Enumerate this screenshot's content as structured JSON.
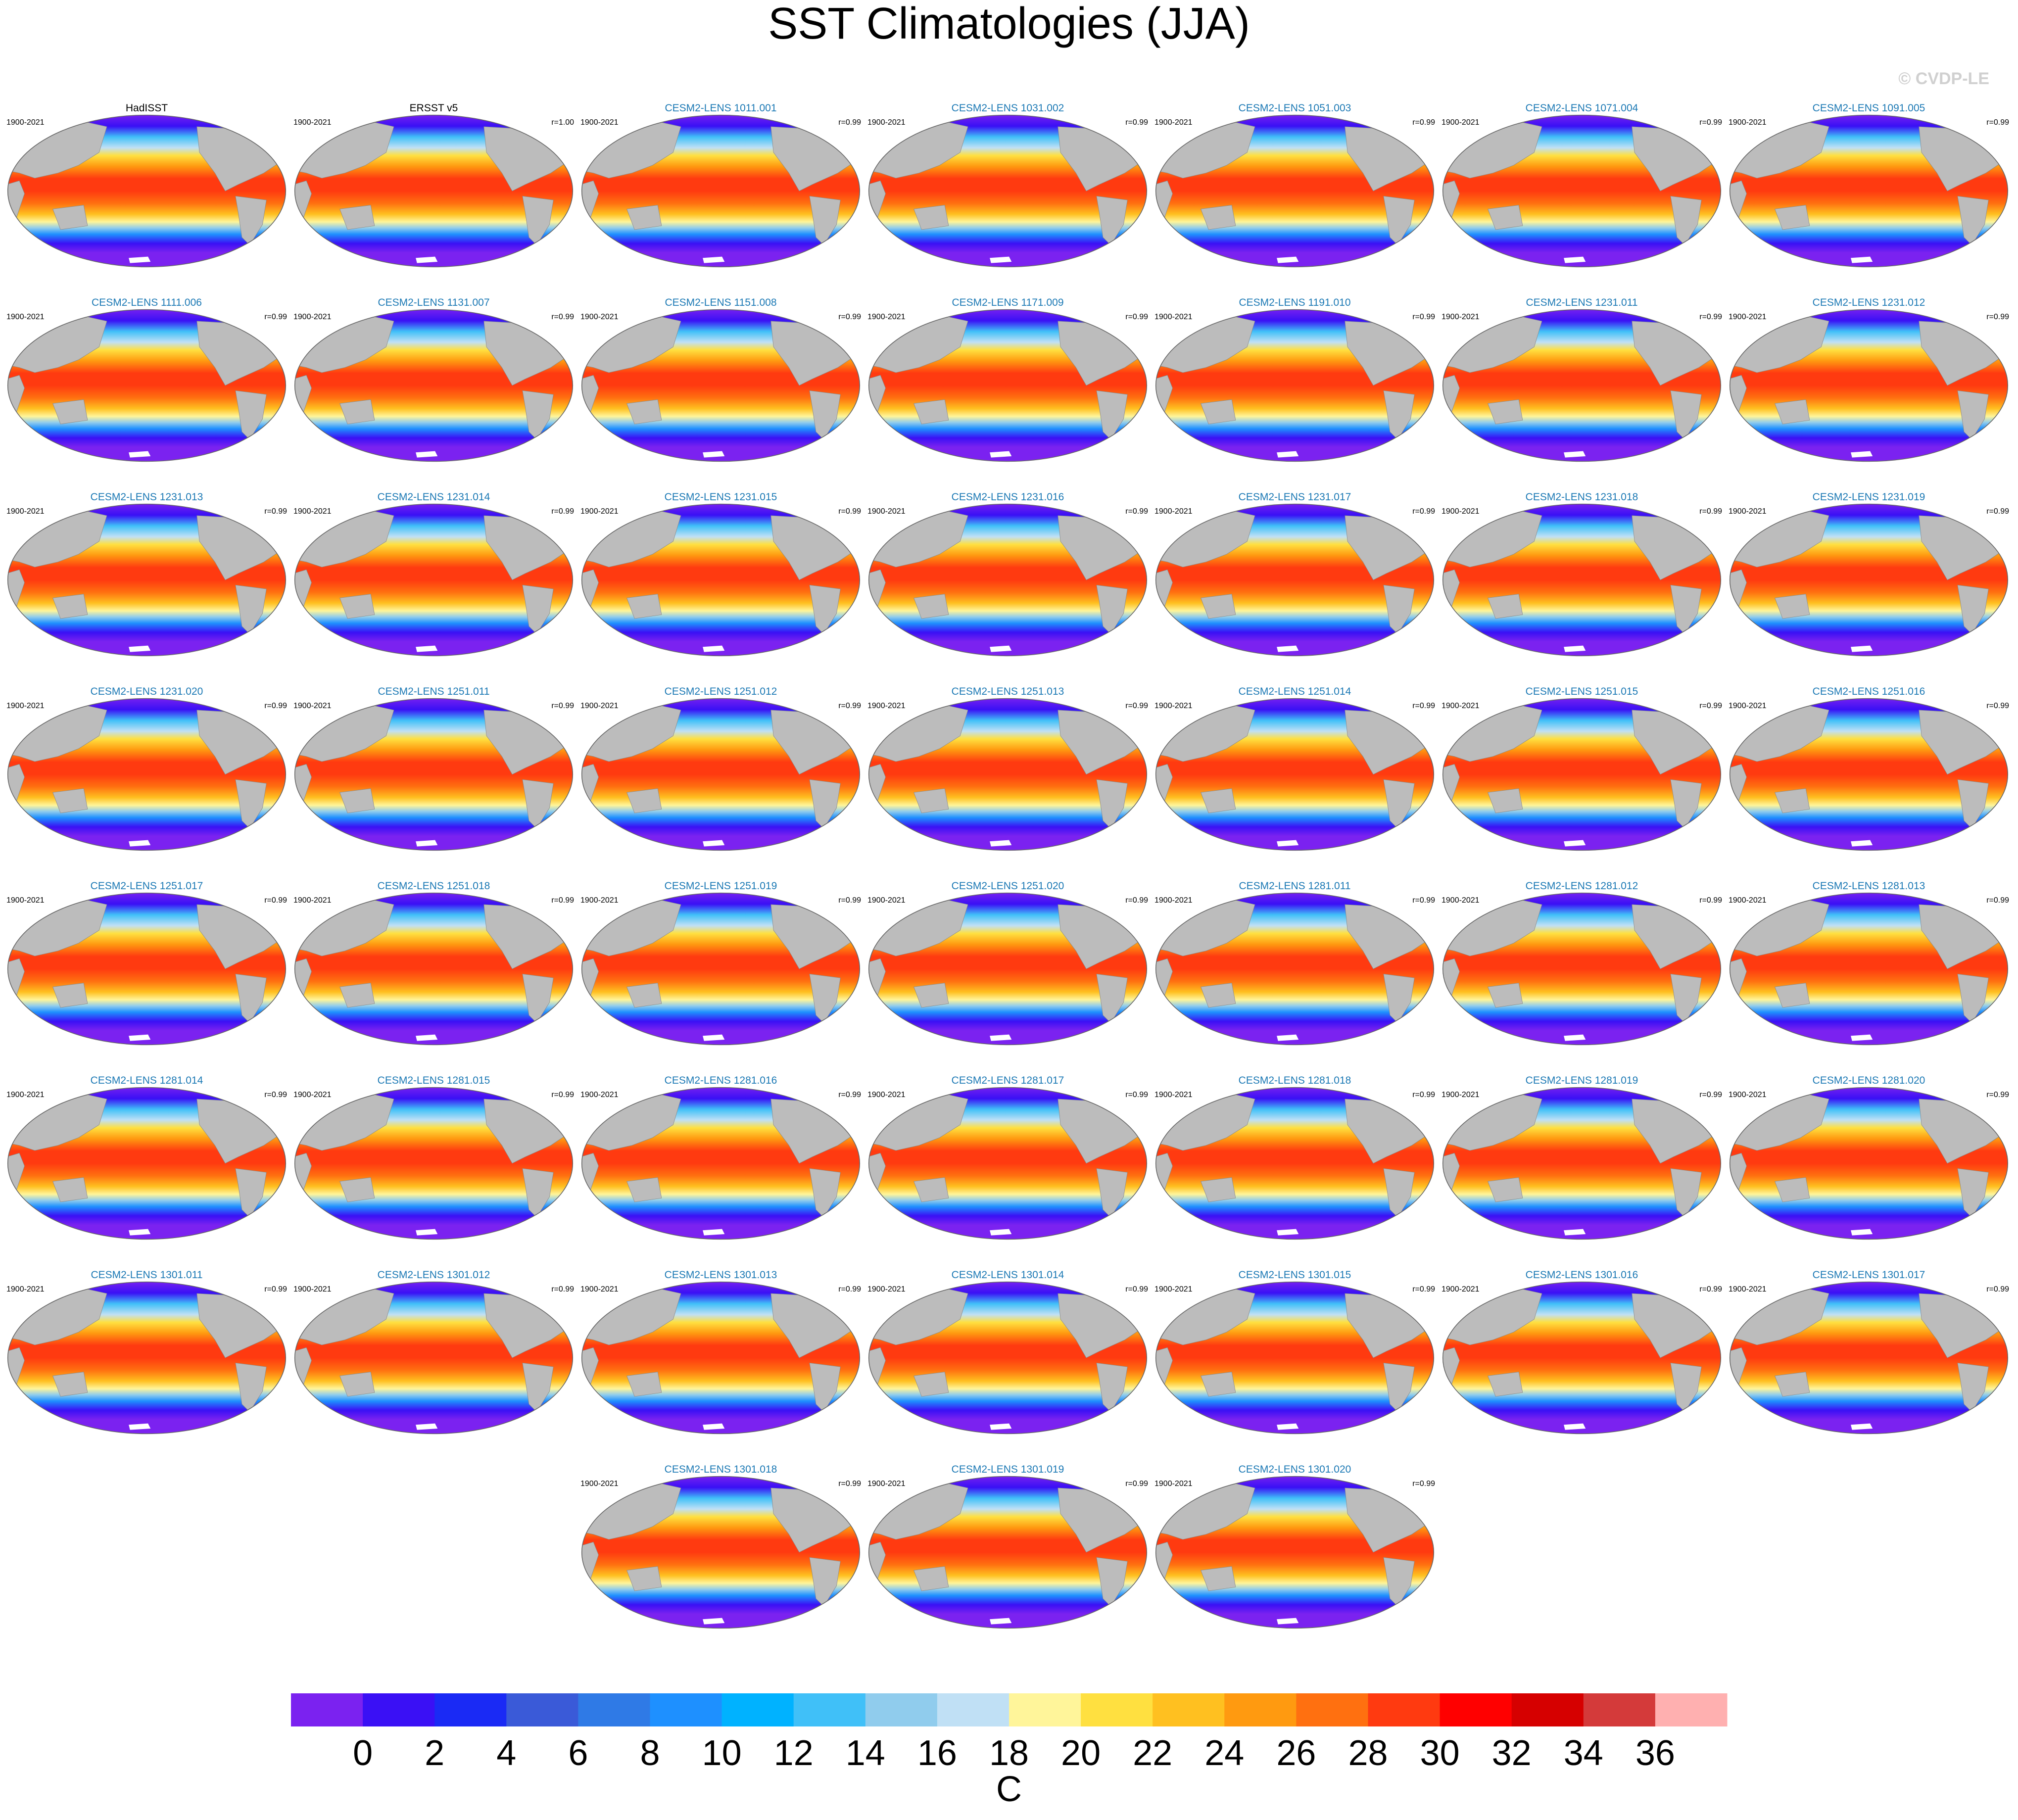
{
  "title": "SST Climatologies (JJA)",
  "watermark": "© CVDP-LE",
  "panels": [
    {
      "title": "HadISST",
      "period": "1900-2021",
      "color": "#000000"
    },
    {
      "title": "ERSST v5",
      "period": "1900-2021",
      "r": "r=1.00",
      "color": "#000000"
    },
    {
      "title": "CESM2-LENS 1011.001",
      "period": "1900-2021",
      "r": "r=0.99",
      "color": "#1a78b4"
    },
    {
      "title": "CESM2-LENS 1031.002",
      "period": "1900-2021",
      "r": "r=0.99",
      "color": "#1a78b4"
    },
    {
      "title": "CESM2-LENS 1051.003",
      "period": "1900-2021",
      "r": "r=0.99",
      "color": "#1a78b4"
    },
    {
      "title": "CESM2-LENS 1071.004",
      "period": "1900-2021",
      "r": "r=0.99",
      "color": "#1a78b4"
    },
    {
      "title": "CESM2-LENS 1091.005",
      "period": "1900-2021",
      "r": "r=0.99",
      "color": "#1a78b4"
    },
    {
      "title": "CESM2-LENS 1111.006",
      "period": "1900-2021",
      "r": "r=0.99",
      "color": "#1a78b4"
    },
    {
      "title": "CESM2-LENS 1131.007",
      "period": "1900-2021",
      "r": "r=0.99",
      "color": "#1a78b4"
    },
    {
      "title": "CESM2-LENS 1151.008",
      "period": "1900-2021",
      "r": "r=0.99",
      "color": "#1a78b4"
    },
    {
      "title": "CESM2-LENS 1171.009",
      "period": "1900-2021",
      "r": "r=0.99",
      "color": "#1a78b4"
    },
    {
      "title": "CESM2-LENS 1191.010",
      "period": "1900-2021",
      "r": "r=0.99",
      "color": "#1a78b4"
    },
    {
      "title": "CESM2-LENS 1231.011",
      "period": "1900-2021",
      "r": "r=0.99",
      "color": "#1a78b4"
    },
    {
      "title": "CESM2-LENS 1231.012",
      "period": "1900-2021",
      "r": "r=0.99",
      "color": "#1a78b4"
    },
    {
      "title": "CESM2-LENS 1231.013",
      "period": "1900-2021",
      "r": "r=0.99",
      "color": "#1a78b4"
    },
    {
      "title": "CESM2-LENS 1231.014",
      "period": "1900-2021",
      "r": "r=0.99",
      "color": "#1a78b4"
    },
    {
      "title": "CESM2-LENS 1231.015",
      "period": "1900-2021",
      "r": "r=0.99",
      "color": "#1a78b4"
    },
    {
      "title": "CESM2-LENS 1231.016",
      "period": "1900-2021",
      "r": "r=0.99",
      "color": "#1a78b4"
    },
    {
      "title": "CESM2-LENS 1231.017",
      "period": "1900-2021",
      "r": "r=0.99",
      "color": "#1a78b4"
    },
    {
      "title": "CESM2-LENS 1231.018",
      "period": "1900-2021",
      "r": "r=0.99",
      "color": "#1a78b4"
    },
    {
      "title": "CESM2-LENS 1231.019",
      "period": "1900-2021",
      "r": "r=0.99",
      "color": "#1a78b4"
    },
    {
      "title": "CESM2-LENS 1231.020",
      "period": "1900-2021",
      "r": "r=0.99",
      "color": "#1a78b4"
    },
    {
      "title": "CESM2-LENS 1251.011",
      "period": "1900-2021",
      "r": "r=0.99",
      "color": "#1a78b4"
    },
    {
      "title": "CESM2-LENS 1251.012",
      "period": "1900-2021",
      "r": "r=0.99",
      "color": "#1a78b4"
    },
    {
      "title": "CESM2-LENS 1251.013",
      "period": "1900-2021",
      "r": "r=0.99",
      "color": "#1a78b4"
    },
    {
      "title": "CESM2-LENS 1251.014",
      "period": "1900-2021",
      "r": "r=0.99",
      "color": "#1a78b4"
    },
    {
      "title": "CESM2-LENS 1251.015",
      "period": "1900-2021",
      "r": "r=0.99",
      "color": "#1a78b4"
    },
    {
      "title": "CESM2-LENS 1251.016",
      "period": "1900-2021",
      "r": "r=0.99",
      "color": "#1a78b4"
    },
    {
      "title": "CESM2-LENS 1251.017",
      "period": "1900-2021",
      "r": "r=0.99",
      "color": "#1a78b4"
    },
    {
      "title": "CESM2-LENS 1251.018",
      "period": "1900-2021",
      "r": "r=0.99",
      "color": "#1a78b4"
    },
    {
      "title": "CESM2-LENS 1251.019",
      "period": "1900-2021",
      "r": "r=0.99",
      "color": "#1a78b4"
    },
    {
      "title": "CESM2-LENS 1251.020",
      "period": "1900-2021",
      "r": "r=0.99",
      "color": "#1a78b4"
    },
    {
      "title": "CESM2-LENS 1281.011",
      "period": "1900-2021",
      "r": "r=0.99",
      "color": "#1a78b4"
    },
    {
      "title": "CESM2-LENS 1281.012",
      "period": "1900-2021",
      "r": "r=0.99",
      "color": "#1a78b4"
    },
    {
      "title": "CESM2-LENS 1281.013",
      "period": "1900-2021",
      "r": "r=0.99",
      "color": "#1a78b4"
    },
    {
      "title": "CESM2-LENS 1281.014",
      "period": "1900-2021",
      "r": "r=0.99",
      "color": "#1a78b4"
    },
    {
      "title": "CESM2-LENS 1281.015",
      "period": "1900-2021",
      "r": "r=0.99",
      "color": "#1a78b4"
    },
    {
      "title": "CESM2-LENS 1281.016",
      "period": "1900-2021",
      "r": "r=0.99",
      "color": "#1a78b4"
    },
    {
      "title": "CESM2-LENS 1281.017",
      "period": "1900-2021",
      "r": "r=0.99",
      "color": "#1a78b4"
    },
    {
      "title": "CESM2-LENS 1281.018",
      "period": "1900-2021",
      "r": "r=0.99",
      "color": "#1a78b4"
    },
    {
      "title": "CESM2-LENS 1281.019",
      "period": "1900-2021",
      "r": "r=0.99",
      "color": "#1a78b4"
    },
    {
      "title": "CESM2-LENS 1281.020",
      "period": "1900-2021",
      "r": "r=0.99",
      "color": "#1a78b4"
    },
    {
      "title": "CESM2-LENS 1301.011",
      "period": "1900-2021",
      "r": "r=0.99",
      "color": "#1a78b4"
    },
    {
      "title": "CESM2-LENS 1301.012",
      "period": "1900-2021",
      "r": "r=0.99",
      "color": "#1a78b4"
    },
    {
      "title": "CESM2-LENS 1301.013",
      "period": "1900-2021",
      "r": "r=0.99",
      "color": "#1a78b4"
    },
    {
      "title": "CESM2-LENS 1301.014",
      "period": "1900-2021",
      "r": "r=0.99",
      "color": "#1a78b4"
    },
    {
      "title": "CESM2-LENS 1301.015",
      "period": "1900-2021",
      "r": "r=0.99",
      "color": "#1a78b4"
    },
    {
      "title": "CESM2-LENS 1301.016",
      "period": "1900-2021",
      "r": "r=0.99",
      "color": "#1a78b4"
    },
    {
      "title": "CESM2-LENS 1301.017",
      "period": "1900-2021",
      "r": "r=0.99",
      "color": "#1a78b4"
    },
    {
      "title": "CESM2-LENS 1301.018",
      "period": "1900-2021",
      "r": "r=0.99",
      "color": "#1a78b4"
    },
    {
      "title": "CESM2-LENS 1301.019",
      "period": "1900-2021",
      "r": "r=0.99",
      "color": "#1a78b4"
    },
    {
      "title": "CESM2-LENS 1301.020",
      "period": "1900-2021",
      "r": "r=0.99",
      "color": "#1a78b4"
    }
  ],
  "colorbar": {
    "colors": [
      "#7b22f0",
      "#3a10f5",
      "#1a2af5",
      "#3a5ad8",
      "#2f7ae6",
      "#1e90ff",
      "#00b2ff",
      "#40c0f8",
      "#90cced",
      "#c0e0f5",
      "#fff59a",
      "#ffe040",
      "#ffc020",
      "#ff9a10",
      "#ff7010",
      "#ff3a10",
      "#ff0000",
      "#d60000",
      "#d43a3a",
      "#ffb0b0"
    ],
    "lim": [
      -2,
      38
    ],
    "ticks": [
      0,
      2,
      4,
      6,
      8,
      10,
      12,
      14,
      16,
      18,
      20,
      22,
      24,
      26,
      28,
      30,
      32,
      34,
      36
    ],
    "unit": "C"
  }
}
